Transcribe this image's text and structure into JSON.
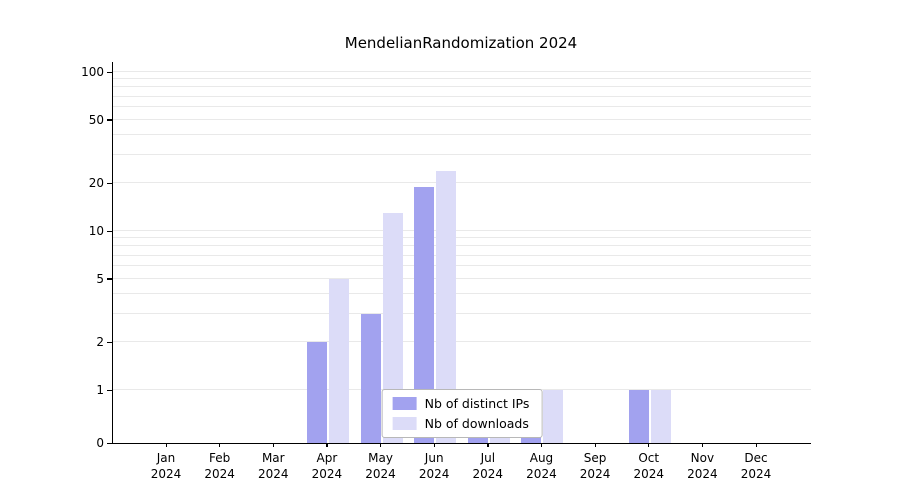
{
  "chart_data": {
    "type": "bar",
    "title": "MendelianRandomization 2024",
    "yscale": "log",
    "ylim": [
      0,
      100
    ],
    "xlabel": "",
    "ylabel": "",
    "categories": [
      "Jan",
      "Feb",
      "Mar",
      "Apr",
      "May",
      "Jun",
      "Jul",
      "Aug",
      "Sep",
      "Oct",
      "Nov",
      "Dec"
    ],
    "year": "2024",
    "series": [
      {
        "name": "Nb of distinct IPs",
        "color": "#a2a2ef",
        "values": [
          0,
          0,
          0,
          2,
          3,
          19,
          1,
          1,
          0,
          1,
          0,
          0
        ]
      },
      {
        "name": "Nb of downloads",
        "color": "#dcdcf8",
        "values": [
          0,
          0,
          0,
          5,
          13,
          24,
          1,
          1,
          0,
          1,
          0,
          0
        ]
      }
    ],
    "ytick_values": [
      0,
      1,
      2,
      5,
      10,
      20,
      50,
      100
    ],
    "gridline_values": [
      1,
      2,
      3,
      4,
      5,
      6,
      7,
      8,
      9,
      10,
      20,
      30,
      40,
      50,
      60,
      70,
      80,
      90,
      100
    ],
    "legend_position": "bottom-center",
    "grid": true
  }
}
